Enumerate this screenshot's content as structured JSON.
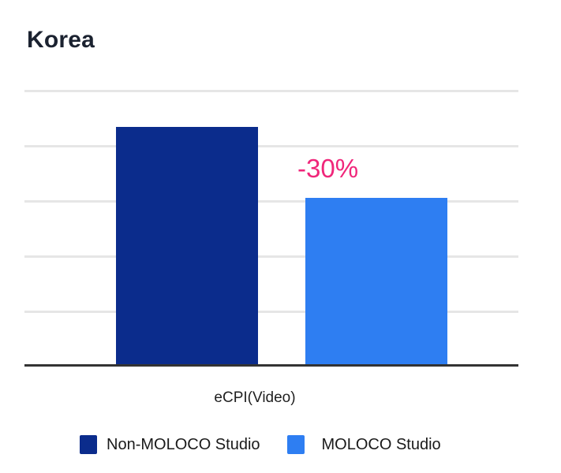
{
  "title": "Korea",
  "chart_data": {
    "type": "bar",
    "title": "Korea",
    "categories": [
      "eCPI(Video)"
    ],
    "series": [
      {
        "name": "Non-MOLOCO Studio",
        "values": [
          100
        ],
        "color": "#0b2c8c"
      },
      {
        "name": "MOLOCO Studio",
        "values": [
          70
        ],
        "color": "#2e7ef2"
      }
    ],
    "xlabel": "eCPI(Video)",
    "ylabel": "",
    "ylim": [
      0,
      116
    ],
    "grid": true,
    "gridlines": 5,
    "y_tick_labels_visible": false,
    "legend_position": "bottom",
    "annotations": [
      {
        "text": "-30%",
        "target_series": "MOLOCO Studio",
        "color": "#f0267a"
      }
    ]
  },
  "legend": {
    "items": [
      {
        "label": "Non-MOLOCO Studio",
        "color": "#0b2c8c"
      },
      {
        "label": "MOLOCO Studio",
        "color": "#2e7ef2"
      }
    ]
  },
  "annotation": {
    "text": "-30%",
    "color": "#f0267a"
  },
  "axis": {
    "category_label": "eCPI(Video)"
  }
}
